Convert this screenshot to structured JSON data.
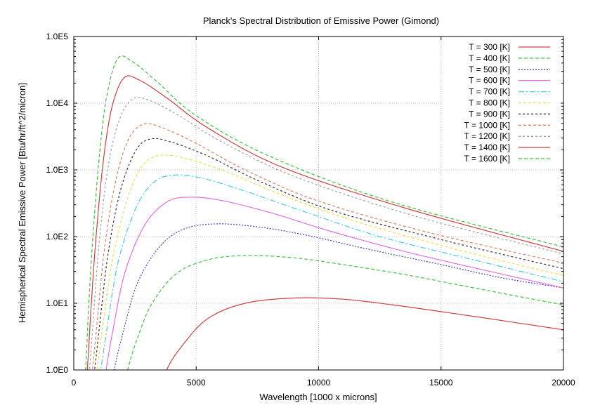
{
  "chart_data": {
    "type": "line",
    "title": "Planck's Spectral Distribution of Emissive Power (Gimond)",
    "xlabel": "Wavelength [1000 x microns]",
    "ylabel": "Hemispherical Spectral Emissive Power [Btu/hr/ft^2/micron]",
    "xlim": [
      0,
      20000
    ],
    "ylim": [
      1,
      100000
    ],
    "yscale": "log",
    "grid": true,
    "legend_position": "top-right",
    "x_ticks": [
      0,
      5000,
      10000,
      15000,
      20000
    ],
    "x_tick_labels": [
      "0",
      "5000",
      "10000",
      "15000",
      "20000"
    ],
    "y_ticks": [
      1,
      10,
      100,
      1000,
      10000,
      100000
    ],
    "y_tick_labels": [
      "1.0E0",
      "1.0E1",
      "1.0E2",
      "1.0E3",
      "1.0E4",
      "1.0E5"
    ],
    "series": [
      {
        "name": "T = 300 [K]",
        "color": "#d04040",
        "dash": "",
        "x": [
          3800,
          4500,
          5500,
          7000,
          9000,
          11000,
          13000,
          15000,
          17500,
          20000
        ],
        "y": [
          1,
          2.5,
          6,
          10,
          12,
          11.5,
          9.5,
          7.5,
          5.5,
          4
        ]
      },
      {
        "name": "T = 400 [K]",
        "color": "#40c040",
        "dash": "5,3",
        "x": [
          2200,
          2600,
          3200,
          4200,
          5500,
          7000,
          9000,
          11000,
          13500,
          16000,
          18000,
          20000
        ],
        "y": [
          1,
          3,
          10,
          28,
          45,
          52,
          48,
          38,
          27,
          18,
          13,
          9.5
        ]
      },
      {
        "name": "T = 500 [K]",
        "color": "#4040c0",
        "dash": "2,2",
        "x": [
          1650,
          2000,
          2600,
          3500,
          4500,
          5800,
          7500,
          9500,
          12000,
          15000,
          17500,
          20000
        ],
        "y": [
          1,
          3.5,
          20,
          70,
          130,
          155,
          140,
          105,
          65,
          38,
          24,
          17
        ]
      },
      {
        "name": "T = 600 [K]",
        "color": "#e070e0",
        "dash": "",
        "x": [
          1320,
          1600,
          2100,
          2900,
          3800,
          4700,
          6000,
          8000,
          10500,
          13500,
          16500,
          20000
        ],
        "y": [
          1,
          4,
          30,
          150,
          330,
          390,
          350,
          230,
          120,
          60,
          33,
          17
        ]
      },
      {
        "name": "T = 700 [K]",
        "color": "#40d0e0",
        "dash": "8,3,2,3",
        "x": [
          1100,
          1350,
          1800,
          2500,
          3200,
          4000,
          5200,
          7000,
          9500,
          12500,
          16000,
          20000
        ],
        "y": [
          1,
          4,
          40,
          250,
          620,
          830,
          760,
          480,
          230,
          100,
          48,
          21
        ]
      },
      {
        "name": "T = 800 [K]",
        "color": "#e8e050",
        "dash": "4,3",
        "x": [
          950,
          1200,
          1600,
          2200,
          2800,
          3500,
          4500,
          6200,
          8500,
          11500,
          15500,
          20000
        ],
        "y": [
          1,
          5,
          50,
          380,
          1150,
          1650,
          1500,
          950,
          420,
          170,
          66,
          26
        ]
      },
      {
        "name": "T = 900 [K]",
        "color": "#303030",
        "dash": "3,3",
        "x": [
          850,
          1050,
          1400,
          1900,
          2500,
          3100,
          4000,
          5500,
          7500,
          10500,
          15000,
          20000
        ],
        "y": [
          1,
          4.5,
          55,
          480,
          1850,
          2900,
          2600,
          1600,
          700,
          250,
          90,
          33
        ]
      },
      {
        "name": "T = 1000 [K]",
        "color": "#e08060",
        "dash": "4,3",
        "x": [
          760,
          950,
          1250,
          1700,
          2200,
          2800,
          3600,
          5000,
          7000,
          10000,
          14500,
          20000
        ],
        "y": [
          1,
          5,
          65,
          650,
          2700,
          4800,
          4300,
          2500,
          1000,
          340,
          115,
          40
        ]
      },
      {
        "name": "T = 1200 [K]",
        "color": "#a0a0a0",
        "dash": "3,3",
        "x": [
          640,
          800,
          1050,
          1400,
          1850,
          2400,
          3100,
          4300,
          6000,
          9000,
          14000,
          20000
        ],
        "y": [
          1,
          6,
          90,
          1100,
          5500,
          11500,
          11000,
          6500,
          2700,
          800,
          200,
          55
        ]
      },
      {
        "name": "T = 1400 [K]",
        "color": "#d04040",
        "dash": "",
        "x": [
          550,
          700,
          900,
          1200,
          1550,
          2050,
          2700,
          3800,
          5500,
          8500,
          13500,
          20000
        ],
        "y": [
          1,
          8,
          90,
          1300,
          8500,
          24000,
          22000,
          12000,
          4200,
          1100,
          270,
          60
        ]
      },
      {
        "name": "T = 1600 [K]",
        "color": "#40c040",
        "dash": "5,3",
        "x": [
          480,
          600,
          780,
          1050,
          1350,
          1800,
          2400,
          3400,
          5000,
          8000,
          13000,
          20000
        ],
        "y": [
          1,
          8,
          100,
          1700,
          13000,
          47000,
          42000,
          21000,
          6500,
          1600,
          330,
          70
        ]
      }
    ]
  }
}
